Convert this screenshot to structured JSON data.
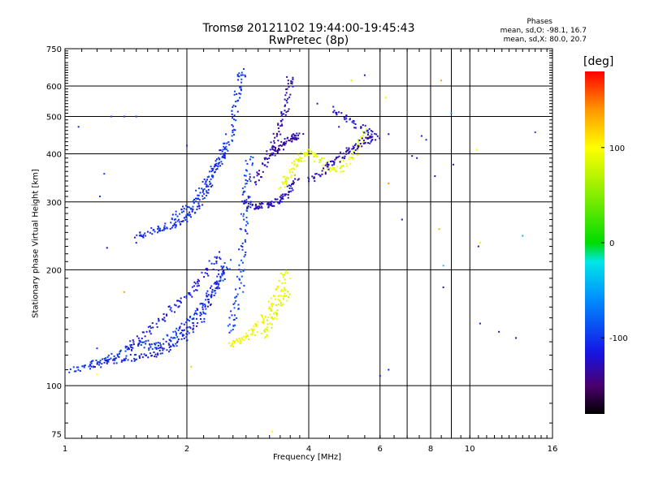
{
  "title": {
    "line1": "Tromsø 20121102 19:44:00-19:45:43",
    "line2": "RwPretec (8p)"
  },
  "phases": {
    "header": "Phases",
    "line_o": "mean, sd,O: -98.1, 16.7",
    "line_x": "mean, sd,X: 80.0, 20.7"
  },
  "chart_data": {
    "type": "scatter",
    "xlabel": "Frequency [MHz]",
    "ylabel": "Stationary phase Virtual Height [km]",
    "xscale": "log",
    "yscale": "log",
    "xlim": [
      1,
      16
    ],
    "ylim": [
      73,
      750
    ],
    "xticks": [
      1,
      2,
      4,
      6,
      8,
      10,
      16
    ],
    "yticks": [
      75,
      100,
      200,
      300,
      400,
      500,
      600,
      750
    ],
    "grid": true,
    "colorbar": {
      "label": "[deg]",
      "range": [
        -180,
        180
      ],
      "ticks": [
        100,
        0,
        -100
      ]
    },
    "traces": [
      {
        "name": "",
        "phase": -100,
        "points": [
          [
            1.02,
            110
          ],
          [
            1.1,
            112
          ],
          [
            1.18,
            115
          ],
          [
            1.25,
            118
          ],
          [
            1.32,
            120
          ],
          [
            1.4,
            124
          ],
          [
            1.48,
            127
          ],
          [
            1.55,
            130
          ],
          [
            1.62,
            126
          ],
          [
            1.7,
            128
          ],
          [
            1.78,
            132
          ],
          [
            1.86,
            136
          ],
          [
            1.94,
            140
          ],
          [
            2.0,
            146
          ],
          [
            2.08,
            152
          ],
          [
            2.15,
            160
          ],
          [
            2.22,
            168
          ],
          [
            2.3,
            176
          ],
          [
            2.38,
            186
          ],
          [
            2.45,
            198
          ],
          [
            2.52,
            212
          ]
        ]
      },
      {
        "name": "",
        "phase": -110,
        "points": [
          [
            1.15,
            113
          ],
          [
            1.25,
            115
          ],
          [
            1.35,
            117
          ],
          [
            1.45,
            118
          ],
          [
            1.55,
            120
          ],
          [
            1.65,
            121
          ],
          [
            1.75,
            124
          ],
          [
            1.85,
            127
          ],
          [
            1.95,
            133
          ],
          [
            2.05,
            140
          ],
          [
            2.15,
            150
          ],
          [
            2.22,
            162
          ],
          [
            2.3,
            174
          ],
          [
            2.38,
            188
          ],
          [
            2.44,
            202
          ]
        ]
      },
      {
        "name": "",
        "phase": -115,
        "points": [
          [
            1.4,
            125
          ],
          [
            1.5,
            132
          ],
          [
            1.6,
            140
          ],
          [
            1.7,
            148
          ],
          [
            1.8,
            156
          ],
          [
            1.9,
            164
          ],
          [
            2.0,
            172
          ],
          [
            2.1,
            182
          ],
          [
            2.2,
            194
          ],
          [
            2.3,
            208
          ],
          [
            2.4,
            222
          ]
        ]
      },
      {
        "name": "",
        "phase": -105,
        "points": [
          [
            1.5,
            245
          ],
          [
            1.58,
            250
          ],
          [
            1.66,
            255
          ],
          [
            1.74,
            258
          ],
          [
            1.82,
            262
          ],
          [
            1.9,
            266
          ],
          [
            1.98,
            272
          ],
          [
            2.06,
            282
          ],
          [
            2.12,
            296
          ],
          [
            2.18,
            314
          ],
          [
            2.24,
            334
          ],
          [
            2.3,
            356
          ],
          [
            2.36,
            380
          ],
          [
            2.42,
            400
          ],
          [
            2.48,
            415
          ]
        ]
      },
      {
        "name": "",
        "phase": -100,
        "points": [
          [
            1.85,
            275
          ],
          [
            1.95,
            285
          ],
          [
            2.05,
            300
          ],
          [
            2.15,
            320
          ],
          [
            2.25,
            345
          ],
          [
            2.35,
            372
          ],
          [
            2.45,
            400
          ],
          [
            2.52,
            430
          ],
          [
            2.58,
            470
          ],
          [
            2.62,
            520
          ],
          [
            2.66,
            580
          ],
          [
            2.7,
            630
          ],
          [
            2.74,
            660
          ]
        ]
      },
      {
        "name": "",
        "phase": -95,
        "points": [
          [
            2.55,
            140
          ],
          [
            2.6,
            150
          ],
          [
            2.65,
            165
          ],
          [
            2.7,
            185
          ],
          [
            2.72,
            210
          ],
          [
            2.74,
            240
          ],
          [
            2.76,
            270
          ],
          [
            2.78,
            300
          ],
          [
            2.8,
            330
          ],
          [
            2.82,
            360
          ],
          [
            2.84,
            400
          ]
        ]
      },
      {
        "name": "",
        "phase": -125,
        "points": [
          [
            2.75,
            300
          ],
          [
            2.85,
            296
          ],
          [
            2.95,
            294
          ],
          [
            3.05,
            295
          ],
          [
            3.15,
            297
          ],
          [
            3.25,
            300
          ],
          [
            3.35,
            305
          ],
          [
            3.45,
            312
          ],
          [
            3.55,
            322
          ],
          [
            3.65,
            335
          ],
          [
            3.72,
            350
          ]
        ]
      },
      {
        "name": "",
        "phase": -130,
        "points": [
          [
            2.9,
            340
          ],
          [
            3.0,
            360
          ],
          [
            3.1,
            385
          ],
          [
            3.2,
            410
          ],
          [
            3.3,
            440
          ],
          [
            3.38,
            470
          ],
          [
            3.46,
            510
          ],
          [
            3.52,
            550
          ],
          [
            3.56,
            600
          ],
          [
            3.6,
            640
          ]
        ]
      },
      {
        "name": "",
        "phase": -135,
        "points": [
          [
            3.2,
            400
          ],
          [
            3.3,
            410
          ],
          [
            3.4,
            420
          ],
          [
            3.5,
            430
          ],
          [
            3.6,
            440
          ],
          [
            3.7,
            445
          ],
          [
            3.8,
            450
          ]
        ]
      },
      {
        "name": "",
        "phase": 95,
        "points": [
          [
            2.55,
            128
          ],
          [
            2.65,
            130
          ],
          [
            2.75,
            133
          ],
          [
            2.85,
            137
          ],
          [
            2.95,
            142
          ],
          [
            3.05,
            148
          ],
          [
            3.15,
            156
          ],
          [
            3.25,
            165
          ],
          [
            3.35,
            175
          ],
          [
            3.42,
            187
          ],
          [
            3.48,
            200
          ]
        ]
      },
      {
        "name": "",
        "phase": 85,
        "points": [
          [
            3.05,
            135
          ],
          [
            3.15,
            142
          ],
          [
            3.25,
            150
          ],
          [
            3.35,
            160
          ],
          [
            3.45,
            170
          ],
          [
            3.55,
            180
          ]
        ]
      },
      {
        "name": "",
        "phase": 90,
        "points": [
          [
            3.4,
            330
          ],
          [
            3.5,
            345
          ],
          [
            3.6,
            360
          ],
          [
            3.7,
            375
          ],
          [
            3.8,
            390
          ],
          [
            3.9,
            400
          ],
          [
            4.0,
            410
          ],
          [
            4.2,
            390
          ],
          [
            4.4,
            375
          ],
          [
            4.6,
            360
          ],
          [
            4.8,
            370
          ],
          [
            5.0,
            390
          ],
          [
            5.2,
            410
          ],
          [
            5.4,
            440
          ],
          [
            5.5,
            460
          ]
        ]
      },
      {
        "name": "",
        "phase": -130,
        "points": [
          [
            4.0,
            340
          ],
          [
            4.2,
            355
          ],
          [
            4.4,
            370
          ],
          [
            4.6,
            380
          ],
          [
            4.8,
            395
          ],
          [
            5.0,
            410
          ],
          [
            5.2,
            420
          ],
          [
            5.4,
            430
          ],
          [
            5.6,
            440
          ],
          [
            5.8,
            445
          ]
        ]
      },
      {
        "name": "",
        "phase": -120,
        "points": [
          [
            4.6,
            520
          ],
          [
            4.9,
            500
          ],
          [
            5.2,
            480
          ],
          [
            5.6,
            460
          ],
          [
            5.9,
            440
          ]
        ]
      }
    ],
    "points": [
      [
        1.08,
        470,
        -110
      ],
      [
        1.2,
        125,
        -100
      ],
      [
        1.22,
        310,
        -100
      ],
      [
        1.25,
        355,
        -90
      ],
      [
        1.27,
        228,
        -130
      ],
      [
        1.3,
        500,
        -95
      ],
      [
        1.4,
        500,
        -100
      ],
      [
        1.4,
        175,
        140
      ],
      [
        1.5,
        235,
        -110
      ],
      [
        1.5,
        500,
        -100
      ],
      [
        2.0,
        420,
        -100
      ],
      [
        2.05,
        112,
        120
      ],
      [
        1.2,
        107,
        100
      ],
      [
        4.2,
        540,
        -120
      ],
      [
        4.6,
        530,
        -110
      ],
      [
        4.75,
        470,
        -130
      ],
      [
        5.1,
        620,
        80
      ],
      [
        5.5,
        640,
        -120
      ],
      [
        5.6,
        460,
        -110
      ],
      [
        5.7,
        430,
        -110
      ],
      [
        6.0,
        106,
        -120
      ],
      [
        6.3,
        110,
        -110
      ],
      [
        6.2,
        560,
        90
      ],
      [
        6.3,
        335,
        140
      ],
      [
        6.3,
        450,
        -140
      ],
      [
        6.8,
        270,
        -130
      ],
      [
        7.2,
        395,
        -130
      ],
      [
        7.4,
        390,
        -120
      ],
      [
        7.6,
        445,
        -130
      ],
      [
        7.8,
        435,
        -100
      ],
      [
        8.2,
        350,
        -140
      ],
      [
        8.4,
        255,
        130
      ],
      [
        8.5,
        620,
        140
      ],
      [
        8.6,
        205,
        -30
      ],
      [
        8.6,
        180,
        -130
      ],
      [
        9.0,
        510,
        -60
      ],
      [
        9.1,
        375,
        -130
      ],
      [
        10.4,
        410,
        100
      ],
      [
        10.5,
        230,
        -140
      ],
      [
        10.6,
        235,
        90
      ],
      [
        10.6,
        145,
        -110
      ],
      [
        11.8,
        138,
        -130
      ],
      [
        13.0,
        133,
        -140
      ],
      [
        13.5,
        245,
        -40
      ],
      [
        14.5,
        455,
        -90
      ],
      [
        3.25,
        76,
        100
      ],
      [
        3.6,
        190,
        100
      ]
    ]
  }
}
